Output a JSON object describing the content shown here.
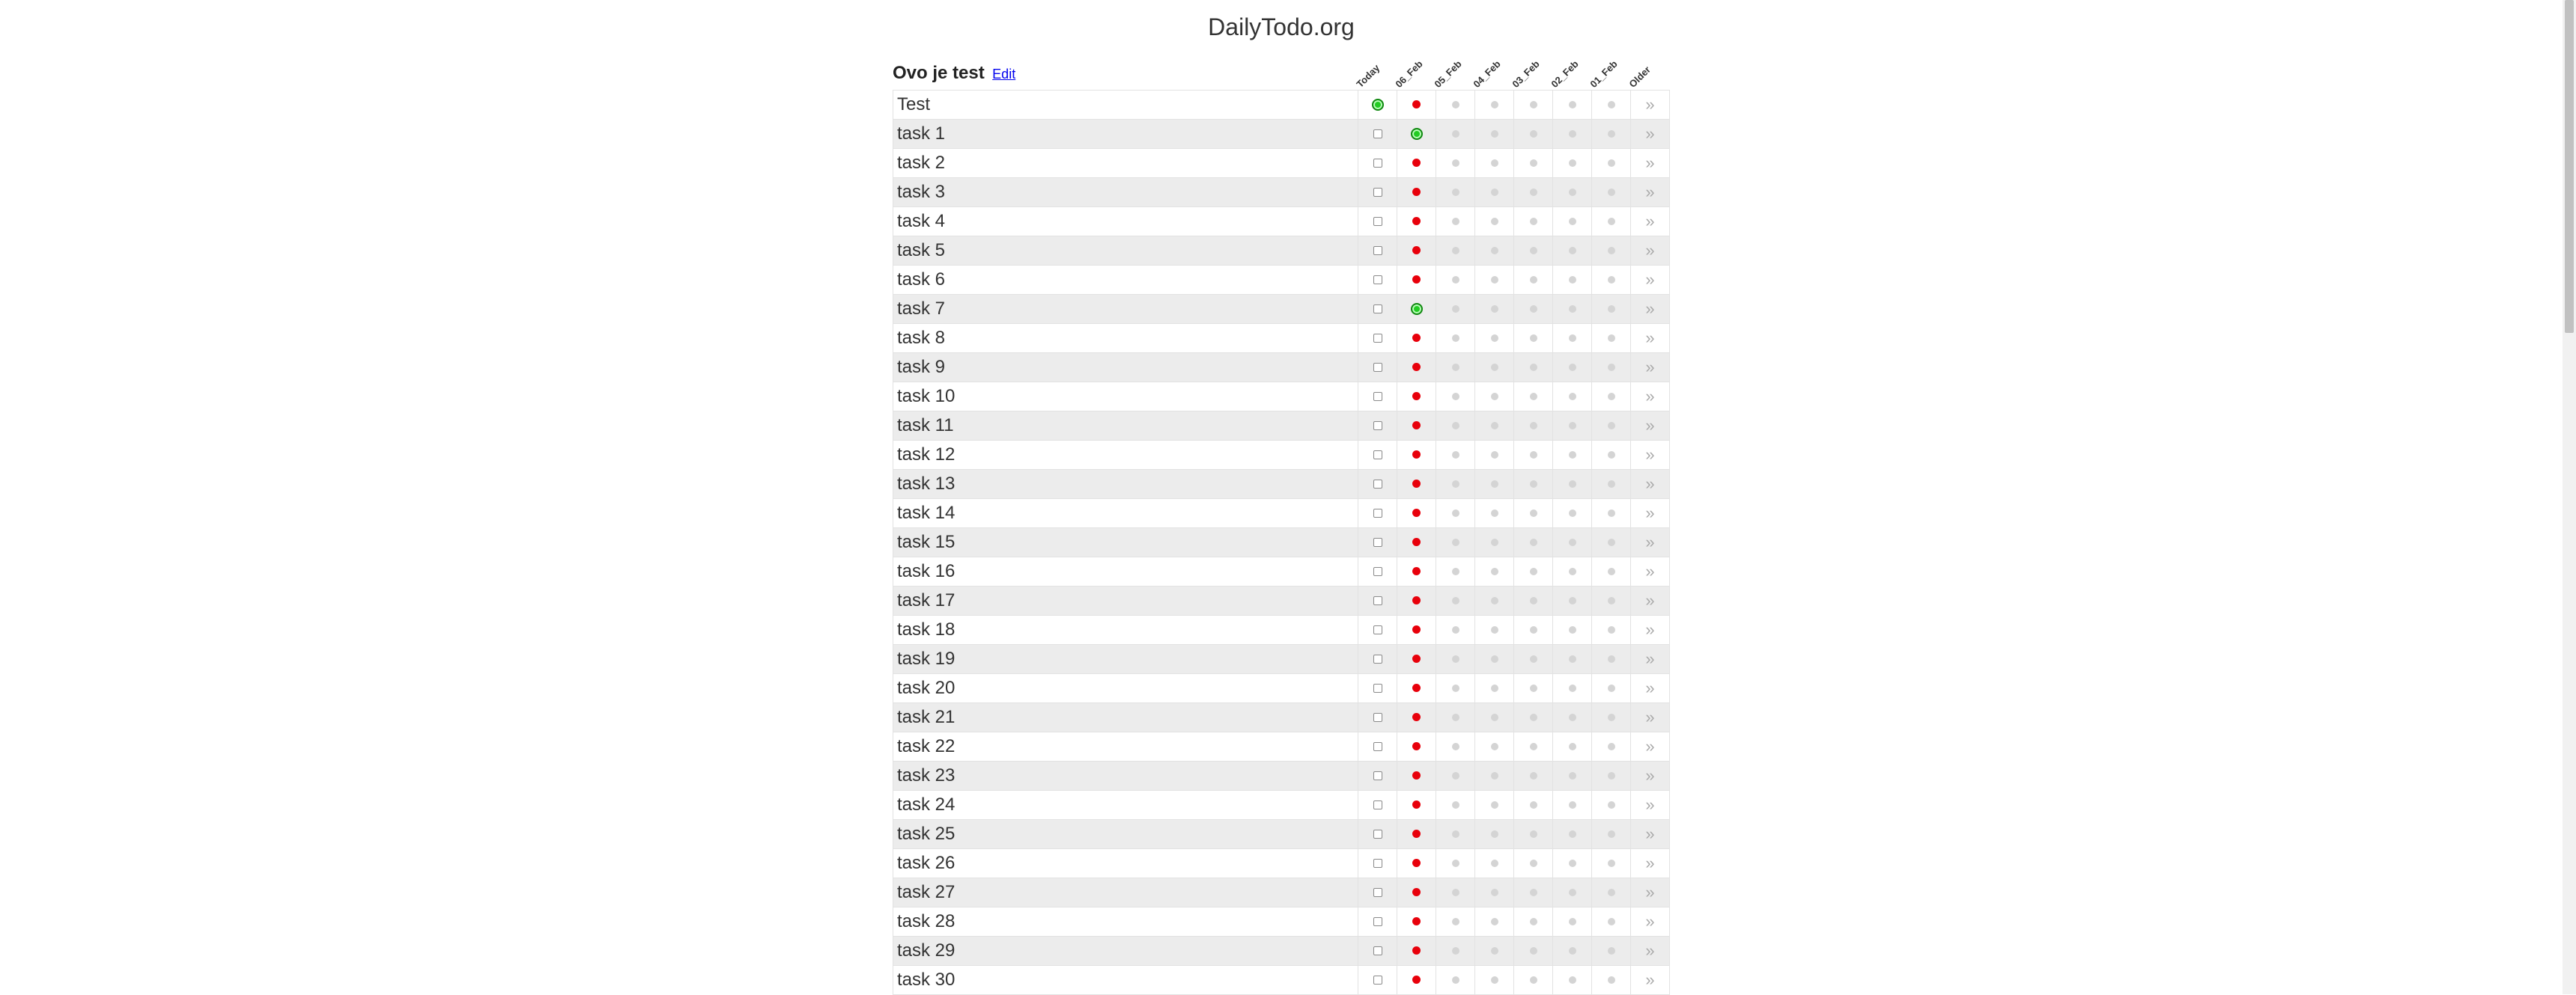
{
  "site": {
    "title": "DailyTodo.org"
  },
  "list": {
    "name": "Ovo je test",
    "edit_label": "Edit"
  },
  "columns": [
    "Today",
    "06_Feb",
    "05_Feb",
    "04_Feb",
    "03_Feb",
    "02_Feb",
    "01_Feb",
    "Older"
  ],
  "older_glyph": "»",
  "status_colors": {
    "done": "#22cc22",
    "missed": "#e8000b",
    "empty": "#d4d4d4"
  },
  "tasks": [
    {
      "name": "Test",
      "today": "done",
      "day1": "missed"
    },
    {
      "name": "task 1",
      "today": "unchecked",
      "day1": "done"
    },
    {
      "name": "task 2",
      "today": "unchecked",
      "day1": "missed"
    },
    {
      "name": "task 3",
      "today": "unchecked",
      "day1": "missed"
    },
    {
      "name": "task 4",
      "today": "unchecked",
      "day1": "missed"
    },
    {
      "name": "task 5",
      "today": "unchecked",
      "day1": "missed"
    },
    {
      "name": "task 6",
      "today": "unchecked",
      "day1": "missed"
    },
    {
      "name": "task 7",
      "today": "unchecked",
      "day1": "done"
    },
    {
      "name": "task 8",
      "today": "unchecked",
      "day1": "missed"
    },
    {
      "name": "task 9",
      "today": "unchecked",
      "day1": "missed"
    },
    {
      "name": "task 10",
      "today": "unchecked",
      "day1": "missed"
    },
    {
      "name": "task 11",
      "today": "unchecked",
      "day1": "missed"
    },
    {
      "name": "task 12",
      "today": "unchecked",
      "day1": "missed"
    },
    {
      "name": "task 13",
      "today": "unchecked",
      "day1": "missed"
    },
    {
      "name": "task 14",
      "today": "unchecked",
      "day1": "missed"
    },
    {
      "name": "task 15",
      "today": "unchecked",
      "day1": "missed"
    },
    {
      "name": "task 16",
      "today": "unchecked",
      "day1": "missed"
    },
    {
      "name": "task 17",
      "today": "unchecked",
      "day1": "missed"
    },
    {
      "name": "task 18",
      "today": "unchecked",
      "day1": "missed"
    },
    {
      "name": "task 19",
      "today": "unchecked",
      "day1": "missed"
    },
    {
      "name": "task 20",
      "today": "unchecked",
      "day1": "missed"
    },
    {
      "name": "task 21",
      "today": "unchecked",
      "day1": "missed"
    },
    {
      "name": "task 22",
      "today": "unchecked",
      "day1": "missed"
    },
    {
      "name": "task 23",
      "today": "unchecked",
      "day1": "missed"
    },
    {
      "name": "task 24",
      "today": "unchecked",
      "day1": "missed"
    },
    {
      "name": "task 25",
      "today": "unchecked",
      "day1": "missed"
    },
    {
      "name": "task 26",
      "today": "unchecked",
      "day1": "missed"
    },
    {
      "name": "task 27",
      "today": "unchecked",
      "day1": "missed"
    },
    {
      "name": "task 28",
      "today": "unchecked",
      "day1": "missed"
    },
    {
      "name": "task 29",
      "today": "unchecked",
      "day1": "missed"
    },
    {
      "name": "task 30",
      "today": "unchecked",
      "day1": "missed"
    }
  ]
}
